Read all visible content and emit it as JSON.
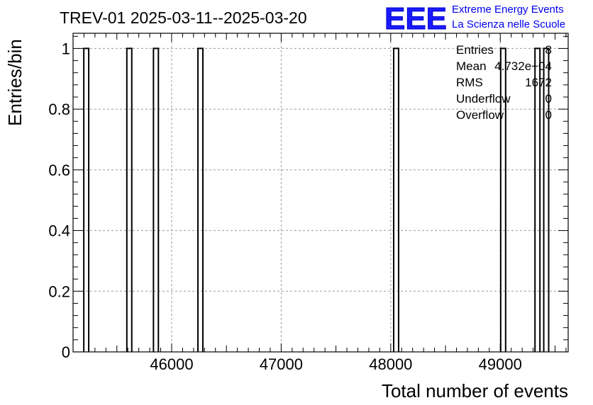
{
  "chart_data": {
    "type": "bar",
    "title": "TREV-01 2025-03-11--2025-03-20",
    "xlabel": "Total number of events",
    "ylabel": "Entries/bin",
    "xlim": [
      45100,
      49620
    ],
    "ylim": [
      0,
      1.05
    ],
    "x_ticks": [
      46000,
      47000,
      48000,
      49000
    ],
    "x_tick_labels": [
      "46000",
      "47000",
      "48000",
      "49000"
    ],
    "y_ticks": [
      0,
      0.2,
      0.4,
      0.6,
      0.8,
      1
    ],
    "y_tick_labels": [
      "0",
      "0.2",
      "0.4",
      "0.6",
      "0.8",
      "1"
    ],
    "bin_width": 45,
    "bins": [
      {
        "x": 45198,
        "value": 1
      },
      {
        "x": 45591,
        "value": 1
      },
      {
        "x": 45834,
        "value": 1
      },
      {
        "x": 46240,
        "value": 1
      },
      {
        "x": 48027,
        "value": 1
      },
      {
        "x": 49004,
        "value": 1
      },
      {
        "x": 49317,
        "value": 1
      },
      {
        "x": 49397,
        "value": 1
      }
    ],
    "grid": true,
    "stats": [
      {
        "label": "Entries",
        "value": "8"
      },
      {
        "label": "Mean",
        "value": "4.732e+04"
      },
      {
        "label": "RMS",
        "value": "1672"
      },
      {
        "label": "Underflow",
        "value": "0"
      },
      {
        "label": "Overflow",
        "value": "0"
      }
    ]
  },
  "logo": {
    "mark": "EEE",
    "line1": "Extreme Energy Events",
    "line2": "La Scienza nelle Scuole"
  }
}
